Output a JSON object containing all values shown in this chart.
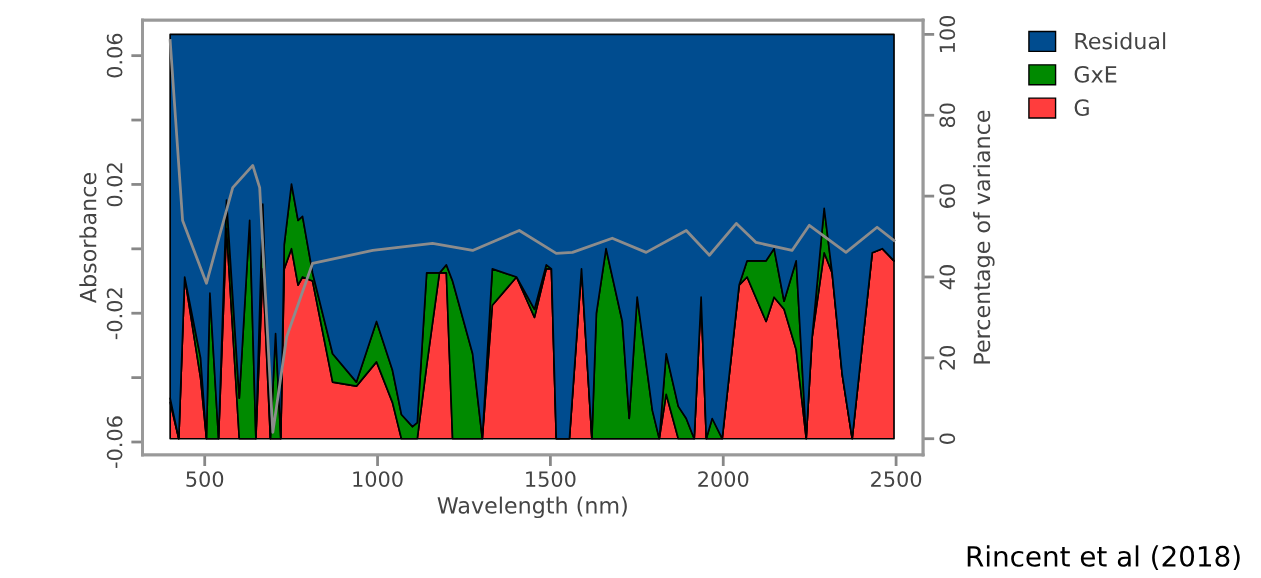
{
  "chart_data": {
    "type": "area",
    "stacked": true,
    "xlabel": "Wavelength (nm)",
    "ylabel": "Absorbance",
    "y2label": "Percentage of variance",
    "x": [
      400,
      425,
      442,
      488,
      505,
      515,
      540,
      563,
      600,
      630,
      648,
      668,
      690,
      705,
      720,
      730,
      751,
      770,
      783,
      812,
      870,
      939,
      997,
      1043,
      1069,
      1101,
      1115,
      1142,
      1179,
      1199,
      1217,
      1275,
      1303,
      1332,
      1402,
      1454,
      1488,
      1503,
      1517,
      1555,
      1590,
      1620,
      1633,
      1661,
      1708,
      1728,
      1751,
      1795,
      1815,
      1835,
      1870,
      1893,
      1916,
      1936,
      1951,
      1968,
      1997,
      2046,
      2069,
      2124,
      2147,
      2176,
      2211,
      2240,
      2257,
      2292,
      2315,
      2344,
      2373,
      2431,
      2460,
      2494
    ],
    "series": [
      {
        "name": "G",
        "color": "#ff3d3d",
        "axis": "y2",
        "values": [
          9,
          0,
          40,
          15,
          0,
          0,
          0,
          52,
          0,
          0,
          0,
          42,
          0,
          0,
          0,
          42,
          47,
          38,
          40,
          39,
          14,
          13,
          19,
          9,
          0,
          0,
          0,
          18,
          41,
          41,
          0,
          0,
          0,
          33,
          40,
          30,
          42,
          42,
          0,
          0,
          42,
          0,
          0,
          0,
          0,
          0,
          0,
          0,
          0,
          11,
          0,
          0,
          0,
          35,
          0,
          0,
          0,
          38,
          40,
          29,
          35,
          32,
          22,
          0,
          25,
          46,
          41,
          16,
          0,
          46,
          47,
          44
        ]
      },
      {
        "name": "GxE",
        "color": "#008a00",
        "axis": "y2",
        "values": [
          1,
          0,
          0,
          5,
          0,
          36,
          0,
          7,
          10,
          54,
          0,
          16,
          0,
          26,
          0,
          6,
          16,
          16,
          15,
          2,
          7,
          1,
          10,
          8,
          6,
          3,
          4,
          23,
          0,
          2,
          39,
          21,
          0,
          9,
          0,
          2,
          1,
          0,
          0,
          0,
          0,
          0,
          31,
          47,
          29,
          5,
          35,
          7,
          0,
          10,
          8,
          5,
          0,
          0,
          0,
          5,
          0,
          0,
          4,
          15,
          12,
          2,
          22,
          0,
          0,
          11,
          0,
          0,
          0,
          0,
          0,
          0
        ]
      },
      {
        "name": "Residual",
        "color": "#004c8f",
        "axis": "y2",
        "values": [
          90,
          100,
          60,
          80,
          100,
          64,
          100,
          41,
          90,
          46,
          100,
          42,
          100,
          74,
          100,
          52,
          37,
          46,
          45,
          59,
          79,
          86,
          71,
          83,
          94,
          97,
          96,
          59,
          59,
          57,
          61,
          79,
          100,
          58,
          60,
          68,
          57,
          58,
          100,
          100,
          58,
          100,
          69,
          53,
          71,
          95,
          65,
          93,
          100,
          79,
          92,
          95,
          100,
          65,
          100,
          95,
          100,
          62,
          56,
          56,
          53,
          66,
          56,
          100,
          75,
          43,
          59,
          84,
          100,
          54,
          53,
          56
        ]
      },
      {
        "type": "line",
        "axis": "y",
        "color": "#8c8c8c",
        "x": [
          400,
          436,
          505,
          581,
          639,
          659,
          697,
          737,
          812,
          986,
          1159,
          1275,
          1410,
          1517,
          1564,
          1679,
          1777,
          1893,
          1960,
          2038,
          2095,
          2199,
          2249,
          2355,
          2445,
          2494
        ],
        "values": [
          0.0647,
          0.0088,
          -0.0107,
          0.019,
          0.0259,
          0.019,
          -0.057,
          -0.0274,
          -0.0045,
          -0.0005,
          0.0017,
          -0.0005,
          0.0057,
          -0.0014,
          -0.0011,
          0.0033,
          -0.0011,
          0.0057,
          -0.002,
          0.0079,
          0.002,
          -0.0005,
          0.0073,
          -0.0011,
          0.0067,
          0.0026
        ]
      }
    ],
    "xlim": [
      320,
      2578
    ],
    "xticks": [
      500,
      1000,
      1500,
      2000,
      2500
    ],
    "ylim": [
      -0.064,
      0.071
    ],
    "yticks": [
      {
        "value": 0.06,
        "label": "0.06"
      },
      {
        "value": 0.04,
        "label": null
      },
      {
        "value": 0.02,
        "label": "0.02"
      },
      {
        "value": 0,
        "label": null
      },
      {
        "value": -0.02,
        "label": "-0.02"
      },
      {
        "value": -0.04,
        "label": null
      },
      {
        "value": -0.06,
        "label": "-0.06"
      }
    ],
    "y2lim": [
      -4,
      103.5
    ],
    "y2ticks": [
      0,
      20,
      40,
      60,
      80,
      100
    ],
    "legend": "top right",
    "grid": false,
    "annotations": [
      "Rincent et al (2018)"
    ]
  }
}
